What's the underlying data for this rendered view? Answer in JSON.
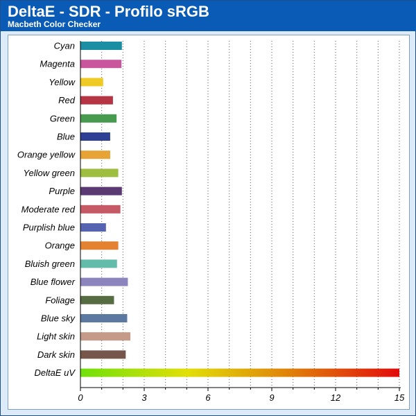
{
  "header": {
    "title": "DeltaE - SDR - Profilo sRGB",
    "subtitle": "Macbeth Color Checker"
  },
  "chart_data": {
    "type": "bar",
    "orientation": "horizontal",
    "categories": [
      "Cyan",
      "Magenta",
      "Yellow",
      "Red",
      "Green",
      "Blue",
      "Orange yellow",
      "Yellow green",
      "Purple",
      "Moderate red",
      "Purplish blue",
      "Orange",
      "Bluish green",
      "Blue flower",
      "Foliage",
      "Blue sky",
      "Light skin",
      "Dark skin",
      "DeltaE uV"
    ],
    "values": [
      1.95,
      1.93,
      1.07,
      1.53,
      1.7,
      1.4,
      1.4,
      1.78,
      1.95,
      1.88,
      1.2,
      1.78,
      1.72,
      2.23,
      1.58,
      2.2,
      2.35,
      2.13,
      15
    ],
    "colors": [
      "#1c8ea3",
      "#c9559d",
      "#efca25",
      "#b53545",
      "#479b4f",
      "#2f3f93",
      "#e7a336",
      "#9dbe3e",
      "#5b3a74",
      "#c55966",
      "#5563b0",
      "#e38332",
      "#63bca9",
      "#8b84bd",
      "#566c43",
      "#5c7aa1",
      "#c69a89",
      "#76564a",
      "gradient"
    ],
    "gradient_colors": [
      "#6fe00b",
      "#e1df08",
      "#e07e0a",
      "#e20b0b"
    ],
    "xticks": [
      0,
      3,
      6,
      9,
      12,
      15
    ],
    "xlim": [
      0,
      15
    ],
    "grid": "vertical-dotted",
    "title": "DeltaE - SDR - Profilo sRGB",
    "subtitle": "Macbeth Color Checker",
    "xlabel": "",
    "ylabel": ""
  }
}
